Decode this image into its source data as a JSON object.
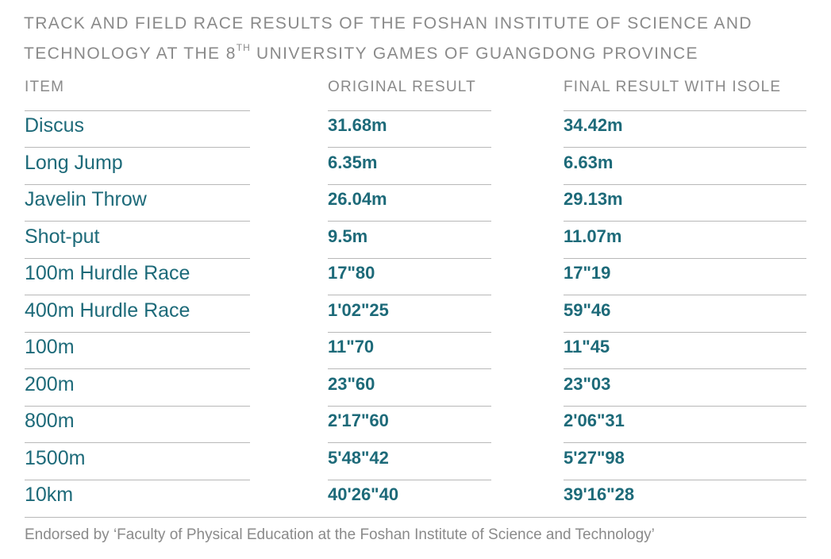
{
  "title": {
    "line1": "TRACK AND FIELD RACE RESULTS OF THE FOSHAN INSTITUTE OF SCIENCE AND",
    "line2_before": "TECHNOLOGY AT THE 8",
    "line2_sup": "TH",
    "line2_after": " UNIVERSITY GAMES OF GUANGDONG PROVINCE"
  },
  "columns": {
    "item": "ITEM",
    "original": "ORIGINAL RESULT",
    "final": "FINAL RESULT WITH ISOLE"
  },
  "rows": [
    {
      "item": "Discus",
      "original": "31.68m",
      "final": "34.42m"
    },
    {
      "item": "Long Jump",
      "original": "6.35m",
      "final": "6.63m"
    },
    {
      "item": "Javelin Throw",
      "original": "26.04m",
      "final": "29.13m"
    },
    {
      "item": "Shot-put",
      "original": "9.5m",
      "final": "11.07m"
    },
    {
      "item": "100m Hurdle Race",
      "original": "17\"80",
      "final": "17\"19"
    },
    {
      "item": "400m Hurdle Race",
      "original": "1'02\"25",
      "final": "59\"46"
    },
    {
      "item": "100m",
      "original": "11\"70",
      "final": "11\"45"
    },
    {
      "item": "200m",
      "original": "23\"60",
      "final": "23\"03"
    },
    {
      "item": "800m",
      "original": "2'17\"60",
      "final": "2'06\"31"
    },
    {
      "item": "1500m",
      "original": "5'48\"42",
      "final": "5'27\"98"
    },
    {
      "item": "10km",
      "original": "40'26\"40",
      "final": "39'16\"28"
    }
  ],
  "footer": "Endorsed by ‘Faculty of Physical Education at the Foshan Institute of Science and Technology’",
  "colors": {
    "accent": "#1d6a79",
    "muted": "#8a8a8a",
    "rule": "#b8b8b8"
  }
}
